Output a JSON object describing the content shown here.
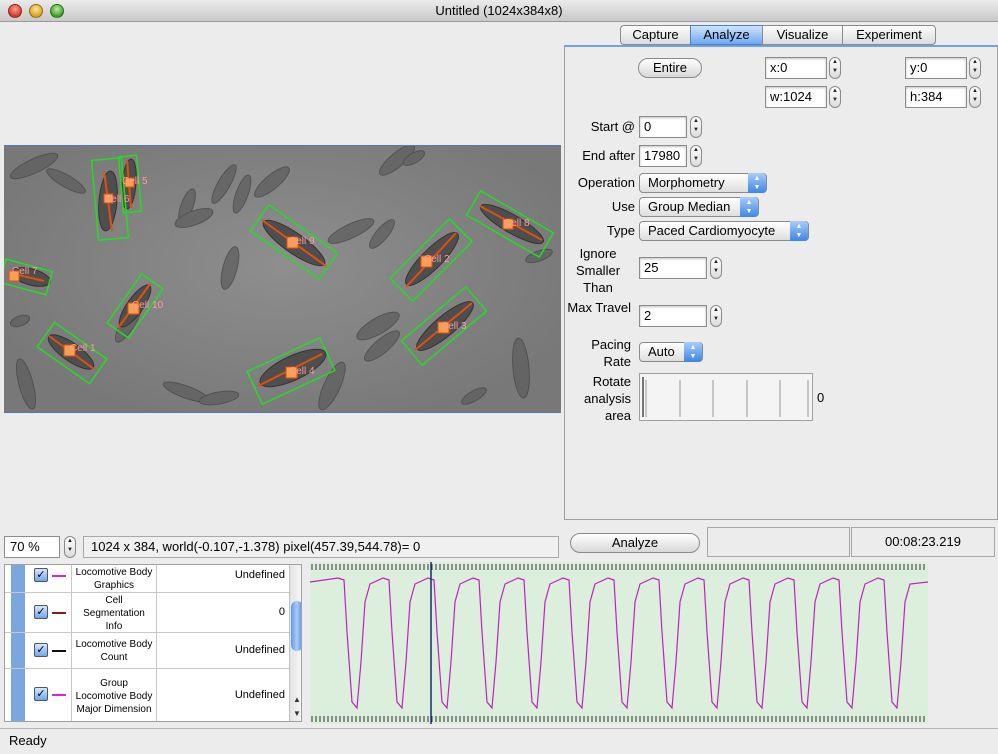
{
  "window": {
    "title": "Untitled (1024x384x8)"
  },
  "tabs": [
    {
      "label": "Capture",
      "active": false
    },
    {
      "label": "Analyze",
      "active": true
    },
    {
      "label": "Visualize",
      "active": false
    },
    {
      "label": "Experiment",
      "active": false
    }
  ],
  "roi": {
    "entire_label": "Entire",
    "x": "x:0",
    "y": "y:0",
    "w": "w:1024",
    "h": "h:384"
  },
  "form": {
    "start_label": "Start @",
    "start_value": "0",
    "end_label": "End after",
    "end_value": "17980",
    "operation_label": "Operation",
    "operation_value": "Morphometry",
    "use_label": "Use",
    "use_value": "Group Median",
    "type_label": "Type",
    "type_value": "Paced Cardiomyocyte",
    "ignore_label": "Ignore Smaller Than",
    "ignore_value": "25",
    "travel_label": "Max Travel",
    "travel_value": "2",
    "pacing_label": "Pacing Rate",
    "pacing_value": "Auto",
    "rotate_label": "Rotate analysis area",
    "rotate_value": "0"
  },
  "analyze_button": "Analyze",
  "elapsed": "00:08:23.219",
  "zoom": "70 %",
  "info": "1024 x 384, world(-0.107,-1.378) pixel(457.39,544.78)=  0",
  "cells": [
    {
      "label": "Cell 1"
    },
    {
      "label": "Cell 5"
    },
    {
      "label": "Cell 6"
    },
    {
      "label": "Cell 7"
    },
    {
      "label": "Cell 8"
    },
    {
      "label": "Cell 9"
    },
    {
      "label": "Cell 10"
    },
    {
      "label": "Cell 2"
    },
    {
      "label": "Cell 3"
    },
    {
      "label": "Cell 4"
    }
  ],
  "measurements": [
    {
      "name": "Locomotive Body Graphics",
      "value": "Undefined",
      "color": "#e020e0"
    },
    {
      "name": "Cell Segmentation Info",
      "value": "0",
      "color": "#8b1a1a"
    },
    {
      "name": "Locomotive Body Count",
      "value": "Undefined",
      "color": "#111111"
    },
    {
      "name": "Group Locomotive Body Major Dimension",
      "value": "Undefined",
      "color": "#e020e0"
    }
  ],
  "status": "Ready",
  "colors": {
    "accent": "#5a90e0",
    "roi_box": "#22dd22",
    "cell_axis": "#e05010",
    "trace": "#c020c0",
    "trace_bg": "#dcefdc"
  }
}
